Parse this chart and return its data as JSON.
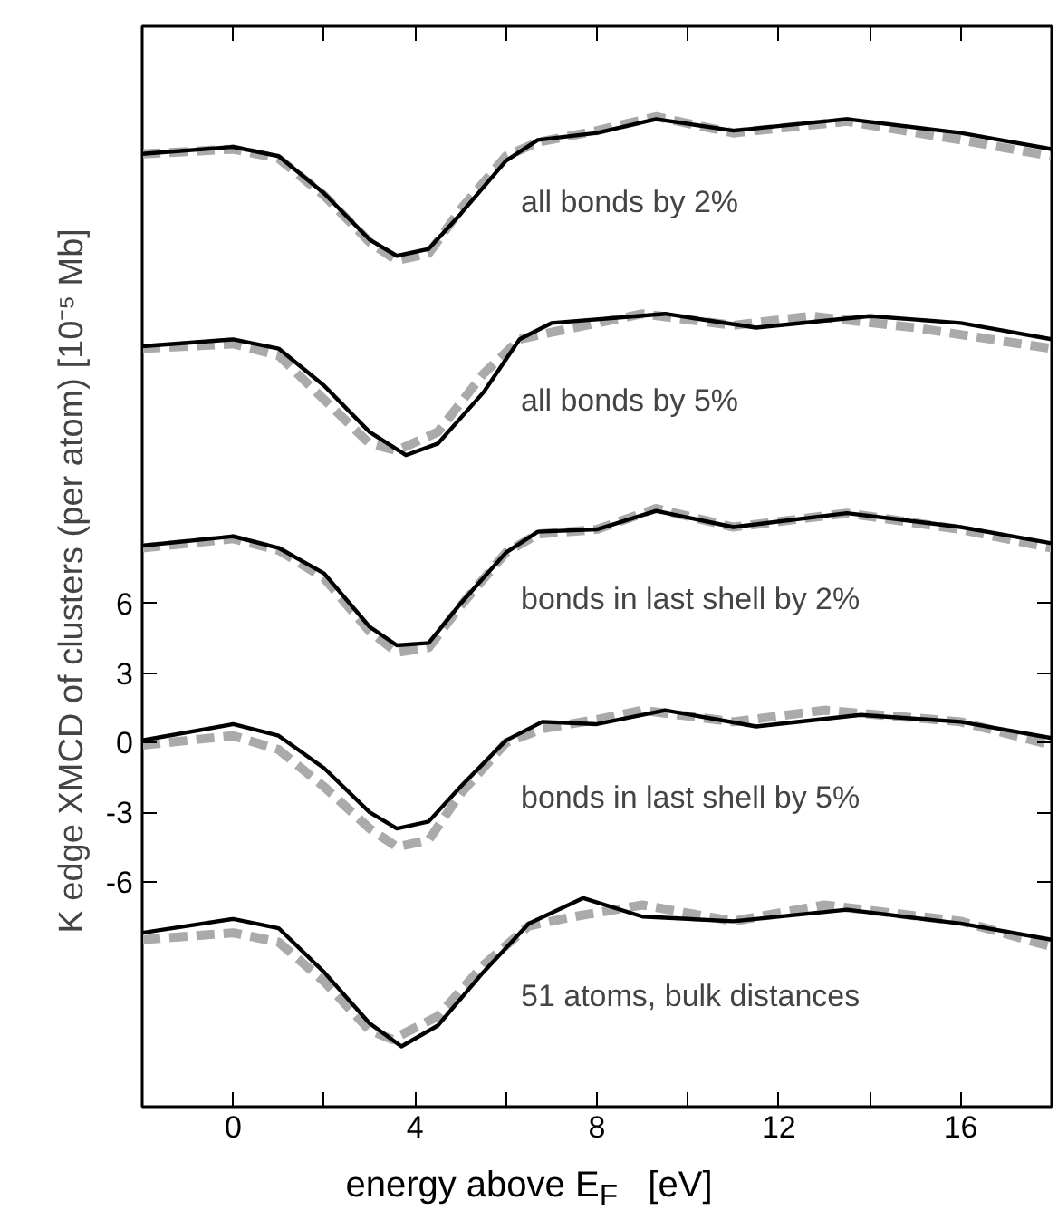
{
  "chart_data": {
    "type": "line",
    "xlabel": "energy above E$_{F}$   [eV]",
    "ylabel": "K edge XMCD of clusters (per atom)    [10⁻⁵ Mb]",
    "xlim": [
      -2,
      18
    ],
    "ylim": [
      -15.7,
      30.9
    ],
    "xticks": [
      {
        "value": -2,
        "label": null
      },
      0,
      {
        "value": 2,
        "label": null
      },
      4,
      {
        "value": 6,
        "label": null
      },
      8,
      {
        "value": 10,
        "label": null
      },
      12,
      {
        "value": 14,
        "label": null
      },
      16,
      {
        "value": 18,
        "label": null
      }
    ],
    "yticks": [
      -6,
      -3,
      0,
      3,
      6
    ],
    "grid": false,
    "series": [
      {
        "color": "#aaaaaa",
        "line_style": "dashed",
        "x": [
          -2,
          0,
          1,
          2,
          3,
          3.6,
          4.3,
          5,
          6,
          6.7,
          8,
          9.3,
          11,
          13.5,
          16,
          18
        ],
        "values": [
          25.4,
          25.6,
          25.2,
          23.6,
          21.6,
          20.8,
          21.1,
          23.0,
          25.3,
          25.9,
          26.4,
          27.0,
          26.3,
          26.8,
          26.0,
          25.3
        ]
      },
      {
        "color": "#000000",
        "line_style": "solid",
        "x": [
          -2,
          0,
          1,
          2,
          3,
          3.6,
          4.3,
          5,
          6,
          6.7,
          8,
          9.3,
          11,
          13.5,
          16,
          18
        ],
        "values": [
          25.4,
          25.7,
          25.3,
          23.7,
          21.7,
          21.0,
          21.3,
          22.8,
          25.1,
          26.0,
          26.3,
          26.9,
          26.4,
          26.9,
          26.3,
          25.6
        ]
      },
      {
        "color": "#aaaaaa",
        "line_style": "dashed",
        "x": [
          -2,
          0,
          1,
          2,
          3,
          3.6,
          4.5,
          5.5,
          6.3,
          7,
          9,
          11,
          12.7,
          15,
          18
        ],
        "values": [
          17.0,
          17.2,
          16.7,
          14.8,
          12.9,
          12.6,
          13.4,
          15.9,
          17.4,
          17.7,
          18.5,
          18.0,
          18.4,
          17.9,
          17.0
        ]
      },
      {
        "color": "#000000",
        "line_style": "solid",
        "x": [
          -2,
          0,
          1,
          2,
          3,
          3.8,
          4.5,
          5.5,
          6.3,
          7,
          9.5,
          11.5,
          14,
          16,
          18
        ],
        "values": [
          17.1,
          17.4,
          17.0,
          15.4,
          13.4,
          12.4,
          12.9,
          15.1,
          17.4,
          18.1,
          18.5,
          17.9,
          18.4,
          18.1,
          17.4
        ]
      },
      {
        "color": "#aaaaaa",
        "line_style": "dashed",
        "x": [
          -2,
          0,
          1,
          2,
          3,
          3.6,
          4.3,
          5,
          6,
          6.7,
          8,
          9.3,
          11,
          13.5,
          16,
          18
        ],
        "values": [
          8.4,
          8.8,
          8.3,
          7.1,
          4.8,
          3.9,
          4.1,
          5.9,
          8.2,
          9.0,
          9.2,
          10.1,
          9.3,
          9.9,
          9.2,
          8.4
        ]
      },
      {
        "color": "#000000",
        "line_style": "solid",
        "x": [
          -2,
          0,
          1,
          2,
          3,
          3.6,
          4.3,
          5,
          6,
          6.7,
          8,
          9.3,
          11,
          13.5,
          16,
          18
        ],
        "values": [
          8.5,
          8.9,
          8.4,
          7.3,
          5.0,
          4.2,
          4.3,
          6.0,
          8.2,
          9.1,
          9.2,
          10.0,
          9.3,
          9.9,
          9.3,
          8.6
        ]
      },
      {
        "color": "#aaaaaa",
        "line_style": "dashed",
        "x": [
          -2,
          0,
          1,
          2,
          3,
          3.6,
          4.3,
          5,
          6,
          6.8,
          8,
          9,
          11,
          13,
          16,
          18
        ],
        "values": [
          -0.1,
          0.3,
          -0.3,
          -1.9,
          -3.7,
          -4.5,
          -4.2,
          -2.2,
          0.0,
          0.6,
          1.0,
          1.4,
          0.9,
          1.4,
          0.9,
          -0.1
        ]
      },
      {
        "color": "#000000",
        "line_style": "solid",
        "x": [
          -2,
          0,
          1,
          2,
          3,
          3.6,
          4.3,
          5,
          6,
          6.8,
          8,
          9.5,
          11.5,
          13.8,
          16,
          18
        ],
        "values": [
          0.1,
          0.8,
          0.3,
          -1.1,
          -3.0,
          -3.7,
          -3.4,
          -1.9,
          0.1,
          0.9,
          0.8,
          1.4,
          0.7,
          1.2,
          0.9,
          0.2
        ]
      },
      {
        "color": "#aaaaaa",
        "line_style": "dashed",
        "x": [
          -2,
          0,
          1,
          2,
          3,
          3.5,
          4.5,
          5.5,
          6.5,
          7.5,
          9,
          11,
          13,
          16,
          18
        ],
        "values": [
          -8.5,
          -8.2,
          -8.6,
          -10.3,
          -12.4,
          -12.8,
          -11.8,
          -9.6,
          -7.9,
          -7.5,
          -7.0,
          -7.7,
          -7.0,
          -7.7,
          -8.8
        ]
      },
      {
        "color": "#000000",
        "line_style": "solid",
        "x": [
          -2,
          0,
          1,
          2,
          3,
          3.7,
          4.5,
          5.5,
          6.5,
          7.7,
          9,
          11,
          13.5,
          16,
          18
        ],
        "values": [
          -8.2,
          -7.6,
          -8.0,
          -9.9,
          -12.1,
          -13.1,
          -12.2,
          -9.9,
          -7.8,
          -6.7,
          -7.5,
          -7.7,
          -7.2,
          -7.8,
          -8.5
        ]
      }
    ],
    "annotations": [
      "all bonds by 2%",
      "all bonds by 5%",
      "bonds in last shell by 2%",
      "bonds in last shell by 5%",
      "51 atoms, bulk distances"
    ]
  }
}
